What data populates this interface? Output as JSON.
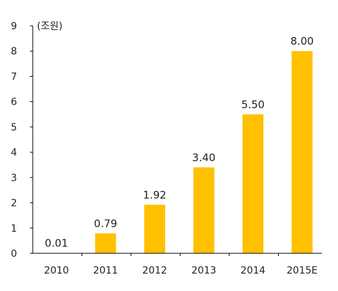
{
  "chart_data": {
    "type": "bar",
    "categories": [
      "2010",
      "2011",
      "2012",
      "2013",
      "2014",
      "2015E"
    ],
    "values": [
      0.01,
      0.79,
      1.92,
      3.4,
      5.5,
      8.0
    ],
    "value_labels": [
      "0.01",
      "0.79",
      "1.92",
      "3.40",
      "5.50",
      "8.00"
    ],
    "unit": "(조원)",
    "y_ticks": [
      "0",
      "1",
      "2",
      "3",
      "4",
      "5",
      "6",
      "7",
      "8",
      "9"
    ],
    "ylim": [
      0,
      9
    ],
    "grid": false,
    "legend": "none",
    "bar_color": "#FFC000",
    "axis_color": "#000000"
  }
}
